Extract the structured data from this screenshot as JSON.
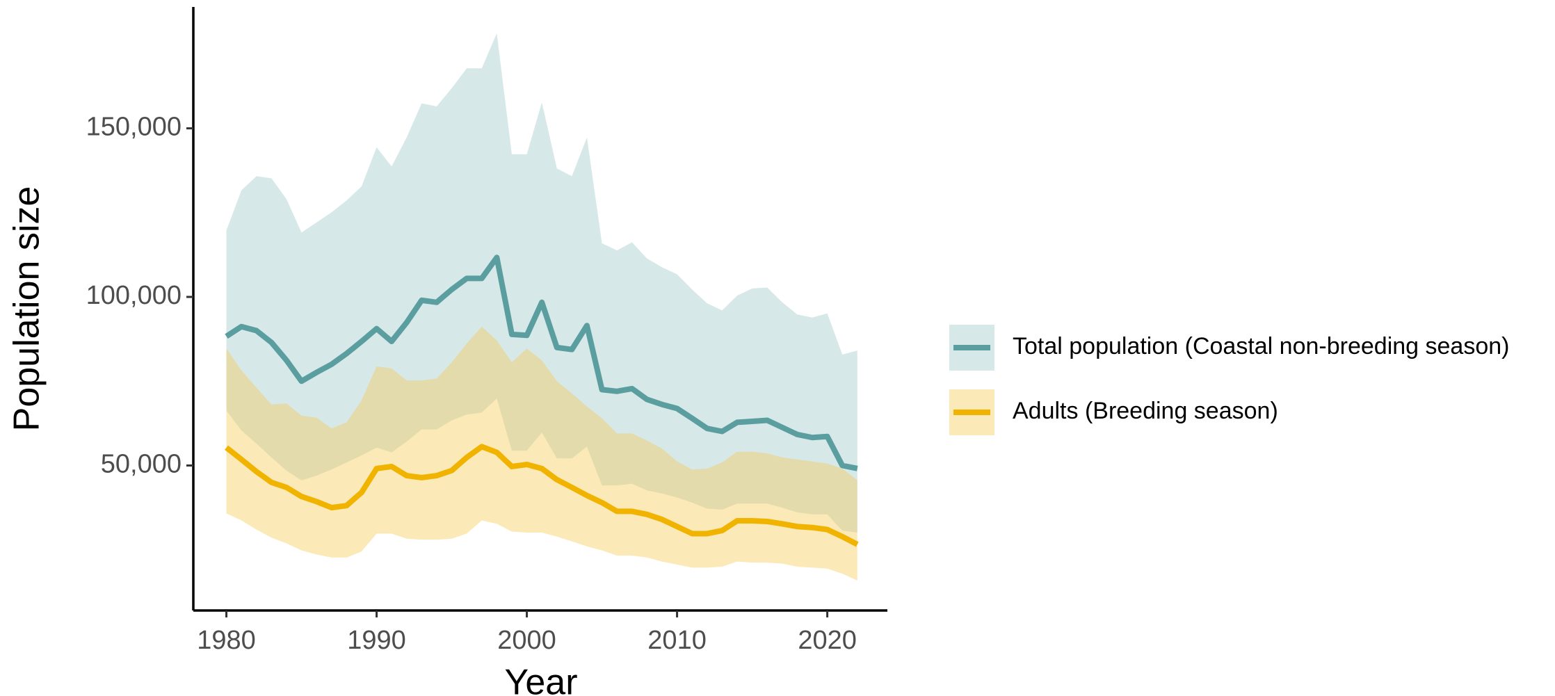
{
  "chart_data": {
    "type": "line",
    "x_label": "Year",
    "y_label": "Population size",
    "x": [
      1980,
      1981,
      1982,
      1983,
      1984,
      1985,
      1986,
      1987,
      1988,
      1989,
      1990,
      1991,
      1992,
      1993,
      1994,
      1995,
      1996,
      1997,
      1998,
      1999,
      2000,
      2001,
      2002,
      2003,
      2004,
      2005,
      2006,
      2007,
      2008,
      2009,
      2010,
      2011,
      2012,
      2013,
      2014,
      2015,
      2016,
      2017,
      2018,
      2019,
      2020,
      2021,
      2022
    ],
    "series": [
      {
        "name": "Total population (Coastal non-breeding season)",
        "color": "#5b9ea0",
        "band_color": "#9cc6c8",
        "values": [
          88300,
          91200,
          90000,
          86500,
          81200,
          75000,
          77600,
          80000,
          83200,
          86800,
          90600,
          86800,
          92400,
          99000,
          98400,
          102200,
          105500,
          105500,
          111700,
          88900,
          88600,
          98400,
          85000,
          84400,
          91500,
          72500,
          72000,
          72800,
          69600,
          68100,
          66900,
          64000,
          61000,
          60100,
          62800,
          63100,
          63400,
          61300,
          59200,
          58300,
          58600,
          50000,
          49100
        ],
        "upper": [
          119700,
          131600,
          135800,
          135200,
          129000,
          119100,
          122100,
          125100,
          128600,
          132800,
          144400,
          138700,
          147300,
          157400,
          156500,
          161900,
          167800,
          167800,
          178200,
          142300,
          142300,
          157700,
          138100,
          135800,
          147300,
          115900,
          113800,
          116200,
          111400,
          108800,
          106700,
          102200,
          98100,
          96000,
          100400,
          102500,
          102800,
          98400,
          94800,
          93900,
          95100,
          82900,
          84100
        ],
        "lower": [
          66300,
          60400,
          56500,
          52400,
          48500,
          45600,
          47000,
          48800,
          50900,
          53000,
          55300,
          53900,
          57100,
          60700,
          60700,
          63400,
          65100,
          65700,
          69900,
          54400,
          54400,
          59800,
          52100,
          52100,
          55600,
          44100,
          44100,
          44600,
          42600,
          41700,
          40500,
          39000,
          37200,
          36900,
          38700,
          38700,
          38700,
          37500,
          36100,
          35500,
          35500,
          30700,
          30100
        ]
      },
      {
        "name": "Adults (Breeding season)",
        "color": "#f0b400",
        "band_color": "#f5c94e",
        "values": [
          55300,
          51800,
          48200,
          45000,
          43500,
          40800,
          39300,
          37500,
          38100,
          42000,
          49100,
          49700,
          47000,
          46400,
          47000,
          48500,
          52400,
          55600,
          53900,
          49700,
          50300,
          49100,
          45800,
          43500,
          41100,
          39000,
          36400,
          36400,
          35500,
          34000,
          31900,
          29800,
          29800,
          30700,
          33600,
          33600,
          33400,
          32700,
          31900,
          31600,
          31000,
          28900,
          26600
        ],
        "upper": [
          84700,
          78200,
          73100,
          68100,
          68400,
          64800,
          64200,
          61000,
          62800,
          69300,
          79400,
          78800,
          75200,
          75200,
          75800,
          80600,
          86200,
          91200,
          87100,
          80600,
          84700,
          81200,
          75000,
          71400,
          67500,
          64000,
          59500,
          59500,
          57400,
          55000,
          51200,
          48800,
          49100,
          50900,
          54100,
          54100,
          53600,
          52400,
          51800,
          51200,
          50600,
          49100,
          45600
        ],
        "lower": [
          35800,
          33700,
          31000,
          28600,
          26900,
          24800,
          23600,
          22700,
          22700,
          24500,
          29800,
          29800,
          28300,
          28000,
          28000,
          28300,
          29800,
          33700,
          32700,
          30400,
          30100,
          30100,
          28900,
          27500,
          26000,
          24800,
          23300,
          23300,
          22700,
          21500,
          20600,
          19700,
          19700,
          20000,
          21500,
          21200,
          21200,
          20900,
          20000,
          19700,
          19400,
          17900,
          15900
        ]
      }
    ],
    "xlim": [
      1977.8,
      2024
    ],
    "ylim": [
      7000,
      186000
    ],
    "xticks": [
      1980,
      1990,
      2000,
      2010,
      2020
    ],
    "yticks": [
      {
        "value": 50000,
        "label": "50,000"
      },
      {
        "value": 100000,
        "label": "100,000"
      },
      {
        "value": 150000,
        "label": "150,000"
      }
    ],
    "legend": "right"
  }
}
